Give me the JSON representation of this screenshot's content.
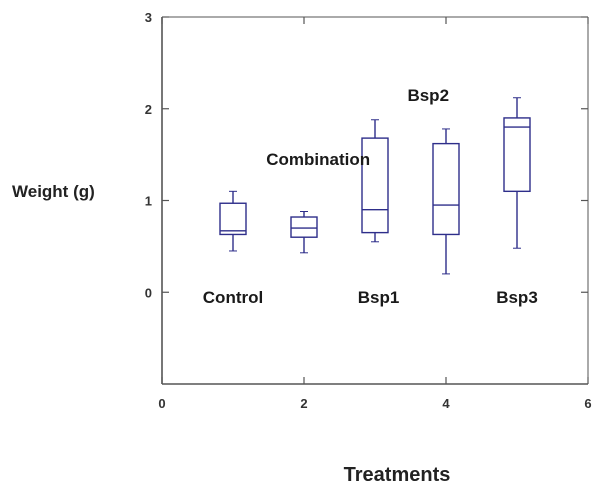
{
  "chart_data": {
    "type": "boxplot",
    "title": "",
    "xlabel": "Treatments",
    "ylabel": "Weight (g)",
    "xlim": [
      0,
      6
    ],
    "ylim": [
      -1,
      3
    ],
    "xticks": [
      0,
      2,
      4,
      6
    ],
    "yticks": [
      0,
      1,
      2,
      3
    ],
    "grid": false,
    "box_color": "#2e2e8a",
    "axis_color": "#555555",
    "boxes": [
      {
        "x": 1,
        "whisker_low": 0.45,
        "q1": 0.63,
        "median": 0.67,
        "q3": 0.97,
        "whisker_high": 1.1
      },
      {
        "x": 2,
        "whisker_low": 0.43,
        "q1": 0.6,
        "median": 0.7,
        "q3": 0.82,
        "whisker_high": 0.88
      },
      {
        "x": 3,
        "whisker_low": 0.55,
        "q1": 0.65,
        "median": 0.9,
        "q3": 1.68,
        "whisker_high": 1.88
      },
      {
        "x": 4,
        "whisker_low": 0.2,
        "q1": 0.63,
        "median": 0.95,
        "q3": 1.62,
        "whisker_high": 1.78
      },
      {
        "x": 5,
        "whisker_low": 0.48,
        "q1": 1.1,
        "median": 1.8,
        "q3": 1.9,
        "whisker_high": 2.12
      }
    ],
    "annotations": [
      {
        "text": "Combination",
        "x": 2.2,
        "y": 1.45
      },
      {
        "text": "Control",
        "x": 1.0,
        "y": -0.05
      },
      {
        "text": "Bsp1",
        "x": 3.05,
        "y": -0.05
      },
      {
        "text": "Bsp2",
        "x": 3.75,
        "y": 2.15
      },
      {
        "text": "Bsp3",
        "x": 5.0,
        "y": -0.05
      }
    ]
  }
}
